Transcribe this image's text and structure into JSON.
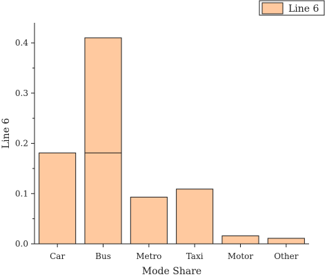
{
  "chart_data": {
    "type": "bar",
    "categories": [
      "Car",
      "Bus",
      "Metro",
      "Taxi",
      "Motor",
      "Other"
    ],
    "series": [
      {
        "name": "Line 6",
        "values": [
          0.181,
          0.41,
          0.093,
          0.109,
          0.016,
          0.011
        ]
      }
    ],
    "bus_inner_line_value": 0.181,
    "xlabel": "Mode Share",
    "ylabel": "Line 6",
    "ylim": [
      0,
      0.44
    ],
    "yticks": [
      "0.0",
      "0.1",
      "0.2",
      "0.3",
      "0.4"
    ],
    "ytick_values": [
      0,
      0.1,
      0.2,
      0.3,
      0.4
    ],
    "legend_position": "top-right",
    "grid": false,
    "colors": {
      "bar_fill": "#ffc99f",
      "bar_stroke": "#1a1a1a"
    }
  }
}
